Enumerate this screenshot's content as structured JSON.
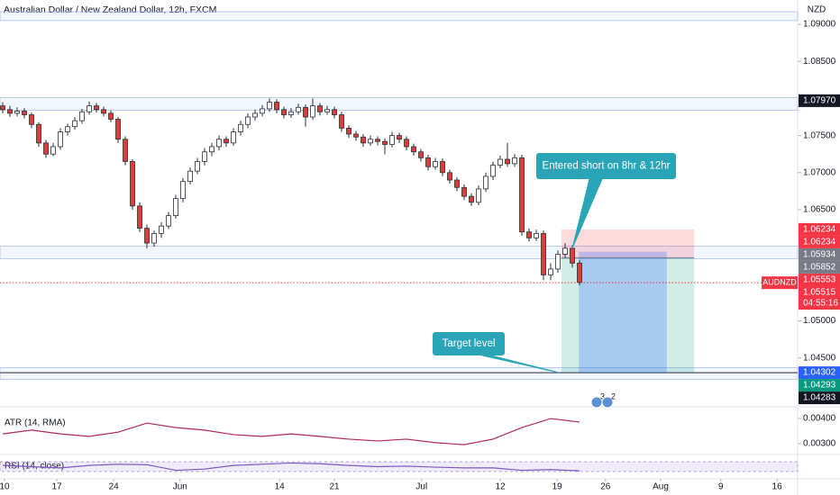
{
  "chart_data": {
    "type": "candlestick",
    "title": "Australian Dollar / New Zealand Dollar, 12h, FXCM",
    "currency": "NZD",
    "up_color": "#ffffff",
    "down_color": "#e53935",
    "outline_color": "#2a2e39",
    "candles": [
      [
        1.079,
        1.0795,
        1.078,
        1.0785
      ],
      [
        1.0785,
        1.079,
        1.0775,
        1.078
      ],
      [
        1.078,
        1.0788,
        1.0776,
        1.0783
      ],
      [
        1.0783,
        1.0787,
        1.0773,
        1.0778
      ],
      [
        1.0778,
        1.0781,
        1.076,
        1.0765
      ],
      [
        1.0765,
        1.0768,
        1.0735,
        1.074
      ],
      [
        1.074,
        1.0744,
        1.072,
        1.0725
      ],
      [
        1.0725,
        1.074,
        1.0722,
        1.0735
      ],
      [
        1.0735,
        1.076,
        1.0731,
        1.0755
      ],
      [
        1.0755,
        1.0766,
        1.075,
        1.0762
      ],
      [
        1.0762,
        1.0775,
        1.0758,
        1.077
      ],
      [
        1.077,
        1.0786,
        1.0766,
        1.0782
      ],
      [
        1.0782,
        1.0796,
        1.0778,
        1.079
      ],
      [
        1.079,
        1.0794,
        1.0781,
        1.0785
      ],
      [
        1.0785,
        1.0789,
        1.0776,
        1.078
      ],
      [
        1.078,
        1.0784,
        1.0768,
        1.0772
      ],
      [
        1.0772,
        1.0775,
        1.074,
        1.0745
      ],
      [
        1.0745,
        1.0749,
        1.071,
        1.0715
      ],
      [
        1.0715,
        1.0718,
        1.065,
        1.0655
      ],
      [
        1.0655,
        1.066,
        1.062,
        1.0625
      ],
      [
        1.0625,
        1.063,
        1.0598,
        1.0605
      ],
      [
        1.0605,
        1.0622,
        1.06,
        1.0618
      ],
      [
        1.0618,
        1.0633,
        1.0612,
        1.0628
      ],
      [
        1.0628,
        1.0647,
        1.0624,
        1.0642
      ],
      [
        1.0642,
        1.067,
        1.0638,
        1.0665
      ],
      [
        1.0665,
        1.0693,
        1.066,
        1.0688
      ],
      [
        1.0688,
        1.0707,
        1.0684,
        1.0702
      ],
      [
        1.0702,
        1.072,
        1.0698,
        1.0715
      ],
      [
        1.0715,
        1.0733,
        1.071,
        1.0728
      ],
      [
        1.0728,
        1.074,
        1.0722,
        1.0735
      ],
      [
        1.0735,
        1.075,
        1.073,
        1.0745
      ],
      [
        1.0745,
        1.0749,
        1.0735,
        1.074
      ],
      [
        1.074,
        1.076,
        1.0736,
        1.0755
      ],
      [
        1.0755,
        1.077,
        1.075,
        1.0765
      ],
      [
        1.0765,
        1.078,
        1.076,
        1.0775
      ],
      [
        1.0775,
        1.0785,
        1.077,
        1.078
      ],
      [
        1.078,
        1.0791,
        1.0776,
        1.0786
      ],
      [
        1.0786,
        1.08,
        1.0782,
        1.0795
      ],
      [
        1.0795,
        1.0799,
        1.078,
        1.0785
      ],
      [
        1.0785,
        1.0789,
        1.0773,
        1.0778
      ],
      [
        1.0778,
        1.0787,
        1.0774,
        1.0782
      ],
      [
        1.0782,
        1.0793,
        1.0778,
        1.0788
      ],
      [
        1.0788,
        1.0792,
        1.0762,
        1.0775
      ],
      [
        1.0775,
        1.08,
        1.0771,
        1.079
      ],
      [
        1.079,
        1.0794,
        1.0777,
        1.0782
      ],
      [
        1.0782,
        1.079,
        1.0778,
        1.0785
      ],
      [
        1.0785,
        1.0789,
        1.0773,
        1.0778
      ],
      [
        1.0778,
        1.0782,
        1.0755,
        1.076
      ],
      [
        1.076,
        1.0764,
        1.0747,
        1.0752
      ],
      [
        1.0752,
        1.0756,
        1.0743,
        1.0748
      ],
      [
        1.0748,
        1.0752,
        1.0735,
        1.074
      ],
      [
        1.074,
        1.075,
        1.0736,
        1.0745
      ],
      [
        1.0745,
        1.0749,
        1.0737,
        1.0742
      ],
      [
        1.0742,
        1.0746,
        1.0725,
        1.0738
      ],
      [
        1.0738,
        1.0755,
        1.0734,
        1.075
      ],
      [
        1.075,
        1.0754,
        1.074,
        1.0745
      ],
      [
        1.0745,
        1.0749,
        1.073,
        1.0735
      ],
      [
        1.0735,
        1.0739,
        1.0723,
        1.0728
      ],
      [
        1.0728,
        1.0732,
        1.0715,
        1.072
      ],
      [
        1.072,
        1.0724,
        1.0703,
        1.0708
      ],
      [
        1.0708,
        1.072,
        1.0704,
        1.0715
      ],
      [
        1.0715,
        1.0719,
        1.0695,
        1.07
      ],
      [
        1.07,
        1.0704,
        1.0685,
        1.069
      ],
      [
        1.069,
        1.0694,
        1.0675,
        1.068
      ],
      [
        1.068,
        1.0684,
        1.0663,
        1.0668
      ],
      [
        1.0668,
        1.0672,
        1.0655,
        1.066
      ],
      [
        1.066,
        1.0683,
        1.0656,
        1.0678
      ],
      [
        1.0678,
        1.07,
        1.0674,
        1.0695
      ],
      [
        1.0695,
        1.0715,
        1.069,
        1.071
      ],
      [
        1.071,
        1.0723,
        1.0706,
        1.0718
      ],
      [
        1.0718,
        1.074,
        1.0708,
        1.0712
      ],
      [
        1.0712,
        1.0725,
        1.0708,
        1.072
      ],
      [
        1.072,
        1.0724,
        1.0615,
        1.062
      ],
      [
        1.062,
        1.0625,
        1.0607,
        1.0612
      ],
      [
        1.0612,
        1.0623,
        1.0608,
        1.0618
      ],
      [
        1.0618,
        1.0622,
        1.0555,
        1.0562
      ],
      [
        1.0562,
        1.0578,
        1.0555,
        1.057
      ],
      [
        1.057,
        1.0595,
        1.0565,
        1.059
      ],
      [
        1.059,
        1.0605,
        1.0585,
        1.0598
      ],
      [
        1.0598,
        1.0602,
        1.0572,
        1.0578
      ],
      [
        1.0578,
        1.0582,
        1.0548,
        1.0552
      ]
    ],
    "ylim": [
      1.04109,
      1.09328
    ],
    "yticks": [
      {
        "value": 1.09,
        "label": "1.09000"
      },
      {
        "value": 1.085,
        "label": "1.08500"
      },
      {
        "value": 1.075,
        "label": "1.07500"
      },
      {
        "value": 1.07,
        "label": "1.07000"
      },
      {
        "value": 1.065,
        "label": "1.06500"
      },
      {
        "value": 1.05,
        "label": "1.05000"
      },
      {
        "value": 1.045,
        "label": "1.04500"
      }
    ],
    "xlim": [
      -0.375,
      110.25
    ],
    "xticks": [
      {
        "value": 0.25,
        "label": "10"
      },
      {
        "value": 7.5,
        "label": "17"
      },
      {
        "value": 15.4,
        "label": "24"
      },
      {
        "value": 24.6,
        "label": "Jun"
      },
      {
        "value": 38.4,
        "label": "14"
      },
      {
        "value": 46,
        "label": "21"
      },
      {
        "value": 58.1,
        "label": "Jul"
      },
      {
        "value": 69,
        "label": "12"
      },
      {
        "value": 76.9,
        "label": "19"
      },
      {
        "value": 83.6,
        "label": "26"
      },
      {
        "value": 91.25,
        "label": "Aug"
      },
      {
        "value": 99.6,
        "label": "9"
      },
      {
        "value": 107.4,
        "label": "16"
      }
    ],
    "zones": [
      [
        1.0917,
        1.0905
      ],
      [
        1.0801,
        1.0784
      ],
      [
        1.0601,
        1.0584
      ],
      [
        1.0437,
        1.0421
      ]
    ],
    "target_line": 1.04302,
    "current_price": {
      "value": 1.05515,
      "label": "1.05515",
      "symbol": "AUDNZD",
      "countdown": "04:55:16",
      "color": "#f23645"
    },
    "price_labels": [
      {
        "value": 1.0797,
        "label": "1.07970",
        "color": "#131722"
      },
      {
        "value": 1.06234,
        "label": "1.06234",
        "color": "#f23645"
      },
      {
        "value": 1.06234,
        "label": "1.06234",
        "color": "#f23645"
      },
      {
        "value": 1.05934,
        "label": "1.05934",
        "color": "#787b86"
      },
      {
        "value": 1.05852,
        "label": "1.05852",
        "color": "#787b86"
      },
      {
        "value": 1.05553,
        "label": "1.05553",
        "color": "#f23645"
      },
      {
        "value": 1.04302,
        "label": "1.04302",
        "color": "#2962ff"
      },
      {
        "value": 1.04293,
        "label": "1.04293",
        "color": "#089981"
      },
      {
        "value": 1.04283,
        "label": "1.04283",
        "color": "#131722"
      }
    ],
    "position": {
      "entry": 1.05852,
      "stop": 1.06234,
      "target": 1.04302,
      "start": 77.5,
      "end": 95.9,
      "fill_start": 79.9,
      "fill_end": 92.1,
      "fill_price": 1.05934
    },
    "annotations": [
      {
        "text": "Entered short on 8hr & 12hr",
        "x": 79,
        "price": 1.0598
      },
      {
        "text": "Target level",
        "x": 77.2,
        "price": 1.04302
      }
    ],
    "badges": [
      "3",
      "2"
    ],
    "atr": {
      "name": "ATR (14, RMA)",
      "color": "#b22857",
      "x": [
        0,
        4,
        8,
        12,
        16,
        20,
        24,
        28,
        32,
        36,
        40,
        44,
        48,
        52,
        56,
        60,
        64,
        68,
        72,
        76,
        80
      ],
      "values": [
        0.00339,
        0.00354,
        0.00339,
        0.00329,
        0.00346,
        0.00382,
        0.00364,
        0.00354,
        0.00336,
        0.00329,
        0.00339,
        0.00329,
        0.00318,
        0.00311,
        0.00318,
        0.00304,
        0.00296,
        0.00318,
        0.00364,
        0.004,
        0.00386
      ],
      "ylim": [
        0.00257,
        0.00436
      ],
      "yticks": [
        {
          "value": 0.004,
          "label": "0.00400"
        },
        {
          "value": 0.003,
          "label": "0.00300"
        }
      ]
    },
    "rsi": {
      "name": "RSI (14, close)",
      "color": "#7e57c2",
      "x": [
        0,
        4,
        8,
        12,
        16,
        20,
        24,
        28,
        32,
        36,
        40,
        44,
        48,
        52,
        56,
        60,
        64,
        68,
        72,
        76,
        80
      ],
      "values": [
        55,
        50,
        45,
        55,
        60,
        58,
        35,
        40,
        55,
        60,
        65,
        62,
        55,
        50,
        52,
        48,
        45,
        45,
        35,
        38,
        33
      ],
      "ylim": [
        0,
        100
      ],
      "band": [
        30,
        70
      ]
    }
  }
}
